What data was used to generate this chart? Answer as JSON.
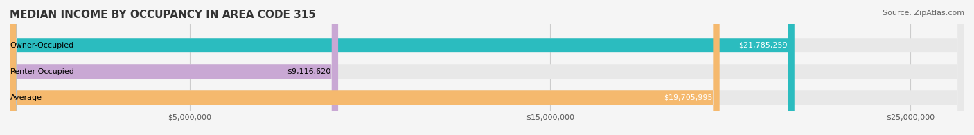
{
  "title": "MEDIAN INCOME BY OCCUPANCY IN AREA CODE 315",
  "source": "Source: ZipAtlas.com",
  "categories": [
    "Owner-Occupied",
    "Renter-Occupied",
    "Average"
  ],
  "values": [
    21785259,
    9116620,
    19705995
  ],
  "bar_colors": [
    "#2bbcbf",
    "#c9a8d4",
    "#f5b96e"
  ],
  "label_colors": [
    "white",
    "black",
    "white"
  ],
  "value_labels": [
    "$21,785,259",
    "$9,116,620",
    "$19,705,995"
  ],
  "xlim": [
    0,
    26500000
  ],
  "xticks": [
    5000000,
    15000000,
    25000000
  ],
  "xtick_labels": [
    "$5,000,000",
    "$15,000,000",
    "$25,000,000"
  ],
  "bar_height": 0.55,
  "background_color": "#f5f5f5",
  "bar_background_color": "#e8e8e8",
  "title_fontsize": 11,
  "source_fontsize": 8,
  "label_fontsize": 8,
  "value_fontsize": 8,
  "tick_fontsize": 8
}
